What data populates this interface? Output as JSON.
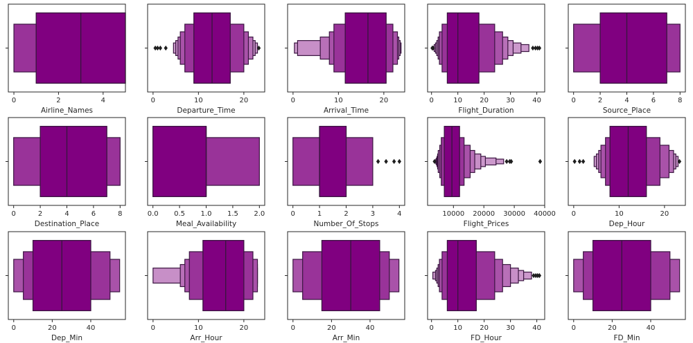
{
  "style": {
    "box_color": "#800080",
    "edge_color": "#3a1540",
    "outlier_color": "#1f1f1f"
  },
  "chart_data": [
    {
      "type": "boxen",
      "xlabel": "Airline_Names",
      "xlim": [
        -0.25,
        5.0
      ],
      "ticks": [
        0,
        2,
        4
      ],
      "median": 3,
      "boxes": [
        [
          1,
          5
        ],
        [
          0,
          1
        ]
      ],
      "outliers": []
    },
    {
      "type": "boxen",
      "xlabel": "Departure_Time",
      "xlim": [
        -1.2,
        24.6
      ],
      "ticks": [
        0,
        10,
        20
      ],
      "median": 13,
      "boxes": [
        [
          9,
          17
        ],
        [
          7,
          20
        ],
        [
          6,
          21
        ],
        [
          5.5,
          22
        ],
        [
          5,
          22.5
        ],
        [
          4.5,
          23
        ]
      ],
      "outliers": [
        0.5,
        1.0,
        1.6,
        2.8,
        23.3
      ]
    },
    {
      "type": "boxen",
      "xlabel": "Arrival_Time",
      "xlim": [
        -1.2,
        24.6
      ],
      "ticks": [
        0,
        10,
        20
      ],
      "median": 16.5,
      "boxes": [
        [
          11.5,
          20.5
        ],
        [
          9,
          22
        ],
        [
          8,
          23
        ],
        [
          6,
          23.3
        ],
        [
          1,
          23.6
        ],
        [
          0.3,
          23.8
        ]
      ],
      "outliers": []
    },
    {
      "type": "boxen",
      "xlabel": "Flight_Duration",
      "xlim": [
        -1.5,
        43
      ],
      "ticks": [
        0,
        10,
        20,
        30,
        40
      ],
      "median": 10,
      "boxes": [
        [
          6,
          18
        ],
        [
          4,
          24
        ],
        [
          3,
          27
        ],
        [
          2.5,
          29
        ],
        [
          2,
          31
        ],
        [
          1.5,
          34
        ],
        [
          1,
          37
        ]
      ],
      "outliers": [
        0.3,
        0.6,
        38.5,
        39.5,
        40.3,
        41
      ]
    },
    {
      "type": "boxen",
      "xlabel": "Source_Place",
      "xlim": [
        -0.4,
        8.4
      ],
      "ticks": [
        0,
        2,
        4,
        6,
        8
      ],
      "median": 4,
      "boxes": [
        [
          2,
          7
        ],
        [
          0,
          8
        ]
      ],
      "outliers": []
    },
    {
      "type": "boxen",
      "xlabel": "Destination_Place",
      "xlim": [
        -0.4,
        8.4
      ],
      "ticks": [
        0,
        2,
        4,
        6,
        8
      ],
      "median": 4,
      "boxes": [
        [
          2,
          7
        ],
        [
          0,
          8
        ]
      ],
      "outliers": []
    },
    {
      "type": "boxen",
      "xlabel": "Meal_Availability",
      "xlim": [
        -0.1,
        2.1
      ],
      "ticks": [
        0.0,
        0.5,
        1.0,
        1.5,
        2.0
      ],
      "median": 1,
      "boxes": [
        [
          0,
          1
        ],
        [
          1,
          2
        ]
      ],
      "outliers": []
    },
    {
      "type": "boxen",
      "xlabel": "Number_Of_Stops",
      "xlim": [
        -0.2,
        4.2
      ],
      "ticks": [
        0,
        1,
        2,
        3,
        4
      ],
      "median": 1,
      "boxes": [
        [
          1,
          2
        ],
        [
          0,
          3
        ]
      ],
      "outliers": [
        3.2,
        3.5,
        3.8,
        4.0
      ]
    },
    {
      "type": "boxen",
      "xlabel": "Flight_Prices",
      "xlim": [
        1500,
        40000
      ],
      "ticks": [
        10000,
        20000,
        30000,
        40000
      ],
      "median": 9500,
      "boxes": [
        [
          7000,
          12000
        ],
        [
          6000,
          13500
        ],
        [
          5500,
          15500
        ],
        [
          5000,
          17000
        ],
        [
          4800,
          19000
        ],
        [
          4600,
          20500
        ],
        [
          4400,
          24000
        ],
        [
          4200,
          26500
        ]
      ],
      "outliers": [
        3800,
        27500,
        28500,
        29000,
        38500
      ]
    },
    {
      "type": "boxen",
      "xlabel": "Dep_Hour",
      "xlim": [
        -1.2,
        24.6
      ],
      "ticks": [
        0,
        10,
        20
      ],
      "median": 12,
      "boxes": [
        [
          8,
          16
        ],
        [
          7,
          19
        ],
        [
          6,
          21
        ],
        [
          5.5,
          22
        ],
        [
          5,
          22.5
        ],
        [
          4.5,
          23
        ]
      ],
      "outliers": [
        0.2,
        1.3,
        2.1,
        23.3
      ]
    },
    {
      "type": "boxen",
      "xlabel": "Dep_Min",
      "xlim": [
        -2.8,
        58
      ],
      "ticks": [
        0,
        20,
        40
      ],
      "median": 25,
      "boxes": [
        [
          10,
          40
        ],
        [
          5,
          50
        ],
        [
          0,
          55
        ]
      ],
      "outliers": []
    },
    {
      "type": "boxen",
      "xlabel": "Arr_Hour",
      "xlim": [
        -1.2,
        24.6
      ],
      "ticks": [
        0,
        10,
        20
      ],
      "median": 16,
      "boxes": [
        [
          11,
          20
        ],
        [
          8,
          22
        ],
        [
          7,
          23
        ],
        [
          6,
          23
        ],
        [
          0,
          23
        ]
      ],
      "outliers": []
    },
    {
      "type": "boxen",
      "xlabel": "Arr_Min",
      "xlim": [
        -2.8,
        58
      ],
      "ticks": [
        0,
        20,
        40
      ],
      "median": 30,
      "boxes": [
        [
          15,
          45
        ],
        [
          5,
          50
        ],
        [
          0,
          55
        ]
      ],
      "outliers": []
    },
    {
      "type": "boxen",
      "xlabel": "FD_Hour",
      "xlim": [
        -1.5,
        43
      ],
      "ticks": [
        0,
        10,
        20,
        30,
        40
      ],
      "median": 10,
      "boxes": [
        [
          6,
          17
        ],
        [
          4,
          24
        ],
        [
          3,
          27
        ],
        [
          2.5,
          30
        ],
        [
          2,
          33
        ],
        [
          1.5,
          35
        ],
        [
          0.5,
          38
        ]
      ],
      "outliers": [
        38.8,
        39.6,
        40.3,
        41
      ]
    },
    {
      "type": "boxen",
      "xlabel": "FD_Min",
      "xlim": [
        -2.8,
        58
      ],
      "ticks": [
        0,
        20,
        40
      ],
      "median": 25,
      "boxes": [
        [
          10,
          40
        ],
        [
          5,
          50
        ],
        [
          0,
          55
        ]
      ],
      "outliers": []
    }
  ]
}
